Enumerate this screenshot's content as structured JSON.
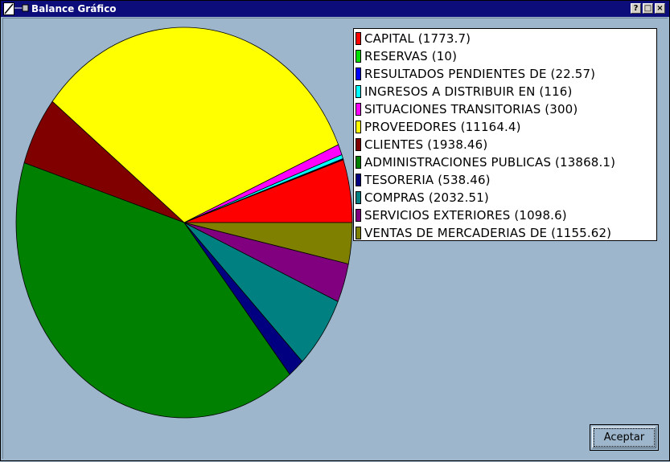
{
  "window": {
    "title": "Balance Gráfico",
    "help_label": "?",
    "maximize_label": "□",
    "close_label": "×"
  },
  "colors": {
    "background": "#9db6cb",
    "titlebar": "#0c0c7a"
  },
  "chart_data": {
    "type": "pie",
    "legend_position": "top-right",
    "labels": [
      "CAPITAL",
      "RESERVAS",
      "RESULTADOS PENDIENTES DE ",
      "INGRESOS A DISTRIBUIR EN ",
      "SITUACIONES TRANSITORIAS ",
      "PROVEEDORES",
      "CLIENTES",
      "ADMINISTRACIONES PUBLICAS",
      "TESORERIA",
      "COMPRAS",
      "SERVICIOS EXTERIORES",
      "VENTAS DE MERCADERIAS DE "
    ],
    "values": [
      1773.7,
      10,
      22.57,
      116,
      300,
      11164.4,
      1938.46,
      13868.1,
      538.46,
      2032.51,
      1098.6,
      1155.62
    ],
    "colors": [
      "#ff0000",
      "#00e000",
      "#0000ff",
      "#00ffff",
      "#ff00ff",
      "#ffff00",
      "#800000",
      "#008000",
      "#000080",
      "#008080",
      "#800080",
      "#808000"
    ],
    "legend_entries": [
      "CAPITAL (1773.7)",
      "RESERVAS (10)",
      "RESULTADOS PENDIENTES DE  (22.57)",
      "INGRESOS A DISTRIBUIR EN  (116)",
      "SITUACIONES TRANSITORIAS  (300)",
      "PROVEEDORES (11164.4)",
      "CLIENTES (1938.46)",
      "ADMINISTRACIONES PUBLICAS (13868.1)",
      "TESORERIA (538.46)",
      "COMPRAS (2032.51)",
      "SERVICIOS EXTERIORES (1098.6)",
      "VENTAS DE MERCADERIAS DE  (1155.62)"
    ]
  },
  "buttons": {
    "accept_label": "Aceptar"
  }
}
